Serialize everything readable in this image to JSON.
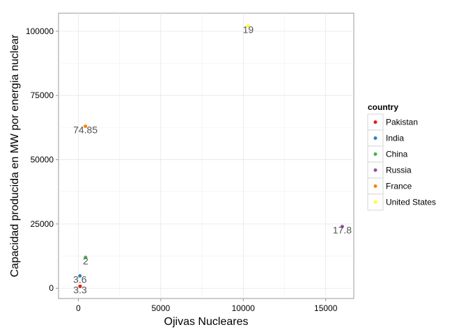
{
  "chart_data": {
    "type": "scatter",
    "xlabel": "Ojivas Nucleares",
    "ylabel": "Capacidad producida en MW por energia nuclear",
    "xlim": [
      -1200,
      16700
    ],
    "ylim": [
      -4000,
      107000
    ],
    "xticks": [
      0,
      5000,
      10000,
      15000
    ],
    "yticks": [
      0,
      25000,
      50000,
      75000,
      100000
    ],
    "xtick_labels": [
      "0",
      "5000",
      "10000",
      "15000"
    ],
    "ytick_labels": [
      "0",
      "25000",
      "50000",
      "75000",
      "100000"
    ],
    "grid": true,
    "legend": {
      "title": "country",
      "position": "right"
    },
    "series": [
      {
        "name": "Pakistan",
        "color": "#E41A1C",
        "x": 110,
        "y": 750,
        "label": "3.3"
      },
      {
        "name": "India",
        "color": "#377EB8",
        "x": 100,
        "y": 4800,
        "label": "3.6"
      },
      {
        "name": "China",
        "color": "#4DAF4A",
        "x": 440,
        "y": 12000,
        "label": "2"
      },
      {
        "name": "Russia",
        "color": "#984EA3",
        "x": 16000,
        "y": 24000,
        "label": "17.8"
      },
      {
        "name": "France",
        "color": "#FF7F00",
        "x": 430,
        "y": 63000,
        "label": "74.85"
      },
      {
        "name": "United States",
        "color": "#FFFF33",
        "x": 10300,
        "y": 102000,
        "label": "19"
      }
    ]
  }
}
